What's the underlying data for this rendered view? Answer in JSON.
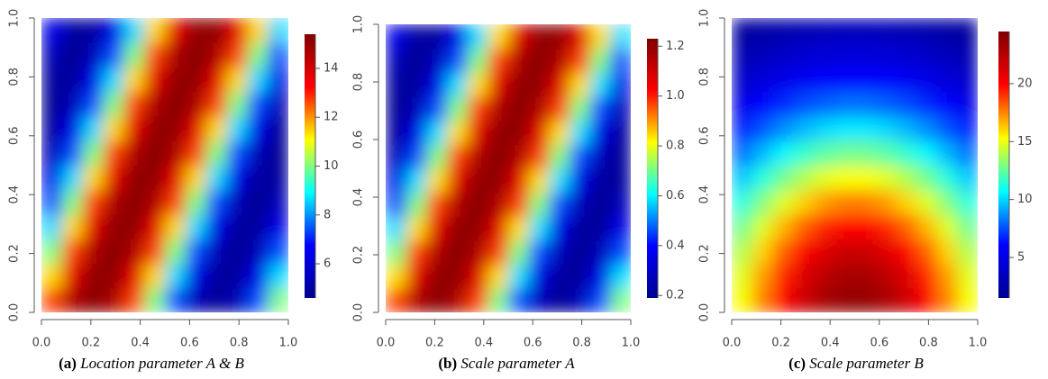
{
  "chart_data": [
    {
      "type": "heatmap",
      "label": "(a)",
      "title": "Location parameter A & B",
      "xlim": [
        0,
        1
      ],
      "ylim": [
        0,
        1
      ],
      "xticks": [
        {
          "value": 0,
          "label": "0.0"
        },
        {
          "value": 0.2,
          "label": "0.2"
        },
        {
          "value": 0.4,
          "label": "0.4"
        },
        {
          "value": 0.6,
          "label": "0.6"
        },
        {
          "value": 0.8,
          "label": "0.8"
        },
        {
          "value": 1,
          "label": "1.0"
        }
      ],
      "yticks": [
        {
          "value": 0,
          "label": "0.0"
        },
        {
          "value": 0.2,
          "label": "0.2"
        },
        {
          "value": 0.4,
          "label": "0.4"
        },
        {
          "value": 0.6,
          "label": "0.6"
        },
        {
          "value": 0.8,
          "label": "0.8"
        },
        {
          "value": 1,
          "label": "1.0"
        }
      ],
      "zlim": [
        4.6,
        15.4
      ],
      "zticks": [
        6,
        8,
        10,
        12,
        14
      ],
      "colormap": [
        "#00008f",
        "#0000ff",
        "#00ffff",
        "#ffff00",
        "#ff0000",
        "#800000"
      ],
      "z": [
        [
          12.7,
          14.6,
          15.3,
          14.6,
          12.7,
          10,
          7.4,
          5.4,
          4.7,
          5.4,
          7.4,
          10
        ],
        [
          11.4,
          13.7,
          15.1,
          15.1,
          13.7,
          11.4,
          8.6,
          6.3,
          4.9,
          4.9,
          6.3,
          8.6
        ],
        [
          10,
          12.7,
          14.6,
          15.3,
          14.6,
          12.7,
          10,
          7.4,
          5.4,
          4.7,
          5.4,
          7.4
        ],
        [
          8.6,
          11.4,
          13.7,
          15.1,
          15.1,
          13.7,
          11.4,
          8.6,
          6.3,
          4.9,
          4.9,
          6.3
        ],
        [
          7.4,
          10,
          12.7,
          14.6,
          15.3,
          14.6,
          12.7,
          10,
          7.4,
          5.4,
          4.7,
          5.4
        ],
        [
          6.3,
          8.6,
          11.4,
          13.7,
          15.1,
          15.1,
          13.7,
          11.4,
          8.6,
          6.3,
          4.9,
          4.9
        ],
        [
          5.4,
          7.4,
          10,
          12.7,
          14.6,
          15.3,
          14.6,
          12.7,
          10,
          7.4,
          5.4,
          4.7
        ],
        [
          4.9,
          6.3,
          8.6,
          11.4,
          13.7,
          15.1,
          15.1,
          13.7,
          11.4,
          8.6,
          6.3,
          4.9
        ],
        [
          4.7,
          5.4,
          7.4,
          10,
          12.7,
          14.6,
          15.3,
          14.6,
          12.7,
          10,
          7.4,
          5.4
        ],
        [
          4.9,
          4.9,
          6.3,
          8.6,
          11.4,
          13.7,
          15.1,
          15.1,
          13.7,
          11.4,
          8.6,
          6.3
        ],
        [
          5.4,
          4.7,
          5.4,
          7.4,
          10,
          12.7,
          14.6,
          15.3,
          14.6,
          12.7,
          10,
          7.4
        ],
        [
          6.3,
          4.9,
          4.9,
          6.3,
          8.6,
          11.4,
          13.7,
          15.1,
          15.1,
          13.7,
          11.4,
          8.6
        ]
      ]
    },
    {
      "type": "heatmap",
      "label": "(b)",
      "title": "Scale parameter A",
      "xlim": [
        0,
        1
      ],
      "ylim": [
        0,
        1
      ],
      "xticks": [
        {
          "value": 0,
          "label": "0.0"
        },
        {
          "value": 0.2,
          "label": "0.2"
        },
        {
          "value": 0.4,
          "label": "0.4"
        },
        {
          "value": 0.6,
          "label": "0.6"
        },
        {
          "value": 0.8,
          "label": "0.8"
        },
        {
          "value": 1,
          "label": "1.0"
        }
      ],
      "yticks": [
        {
          "value": 0,
          "label": "0.0"
        },
        {
          "value": 0.2,
          "label": "0.2"
        },
        {
          "value": 0.4,
          "label": "0.4"
        },
        {
          "value": 0.6,
          "label": "0.6"
        },
        {
          "value": 0.8,
          "label": "0.8"
        },
        {
          "value": 1,
          "label": "1.0"
        }
      ],
      "zlim": [
        0.19,
        1.23
      ],
      "zticks": [
        0.2,
        0.4,
        0.6,
        0.8,
        {
          "value": 1,
          "label": "1.0"
        },
        1.2
      ],
      "colormap": [
        "#00008f",
        "#0000ff",
        "#00ffff",
        "#ffff00",
        "#ff0000",
        "#800000"
      ],
      "z": [
        [
          0.97,
          1.15,
          1.22,
          1.15,
          0.97,
          0.71,
          0.46,
          0.27,
          0.2,
          0.27,
          0.46,
          0.71
        ],
        [
          0.84,
          1.07,
          1.2,
          1.2,
          1.07,
          0.84,
          0.58,
          0.35,
          0.22,
          0.22,
          0.35,
          0.58
        ],
        [
          0.71,
          0.97,
          1.15,
          1.22,
          1.15,
          0.97,
          0.71,
          0.46,
          0.27,
          0.2,
          0.27,
          0.46
        ],
        [
          0.58,
          0.84,
          1.07,
          1.2,
          1.2,
          1.07,
          0.84,
          0.58,
          0.35,
          0.22,
          0.22,
          0.35
        ],
        [
          0.46,
          0.71,
          0.97,
          1.15,
          1.22,
          1.15,
          0.97,
          0.71,
          0.46,
          0.27,
          0.2,
          0.27
        ],
        [
          0.35,
          0.58,
          0.84,
          1.07,
          1.2,
          1.2,
          1.07,
          0.84,
          0.58,
          0.35,
          0.22,
          0.22
        ],
        [
          0.27,
          0.46,
          0.71,
          0.97,
          1.15,
          1.22,
          1.15,
          0.97,
          0.71,
          0.46,
          0.27,
          0.2
        ],
        [
          0.22,
          0.35,
          0.58,
          0.84,
          1.07,
          1.2,
          1.2,
          1.07,
          0.84,
          0.58,
          0.35,
          0.22
        ],
        [
          0.2,
          0.27,
          0.46,
          0.71,
          0.97,
          1.15,
          1.22,
          1.15,
          0.97,
          0.71,
          0.46,
          0.27
        ],
        [
          0.22,
          0.22,
          0.35,
          0.58,
          0.84,
          1.07,
          1.2,
          1.2,
          1.07,
          0.84,
          0.58,
          0.35
        ],
        [
          0.27,
          0.2,
          0.27,
          0.46,
          0.71,
          0.97,
          1.15,
          1.22,
          1.15,
          0.97,
          0.71,
          0.46
        ],
        [
          0.35,
          0.22,
          0.22,
          0.35,
          0.58,
          0.84,
          1.07,
          1.2,
          1.2,
          1.07,
          0.84,
          0.58
        ]
      ]
    },
    {
      "type": "heatmap",
      "label": "(c)",
      "title": "Scale parameter B",
      "xlim": [
        0,
        1
      ],
      "ylim": [
        0,
        1
      ],
      "xticks": [
        {
          "value": 0,
          "label": "0.0"
        },
        {
          "value": 0.2,
          "label": "0.2"
        },
        {
          "value": 0.4,
          "label": "0.4"
        },
        {
          "value": 0.6,
          "label": "0.6"
        },
        {
          "value": 0.8,
          "label": "0.8"
        },
        {
          "value": 1,
          "label": "1.0"
        }
      ],
      "yticks": [
        {
          "value": 0,
          "label": "0.0"
        },
        {
          "value": 0.2,
          "label": "0.2"
        },
        {
          "value": 0.4,
          "label": "0.4"
        },
        {
          "value": 0.6,
          "label": "0.6"
        },
        {
          "value": 0.8,
          "label": "0.8"
        },
        {
          "value": 1,
          "label": "1.0"
        }
      ],
      "zlim": [
        1.5,
        24.5
      ],
      "zticks": [
        5,
        10,
        15,
        20
      ],
      "colormap": [
        "#00008f",
        "#0000ff",
        "#00ffff",
        "#ffff00",
        "#ff0000",
        "#800000"
      ],
      "z": [
        [
          15.2,
          17.6,
          19.9,
          21.8,
          23.1,
          23.8,
          23.8,
          23.1,
          21.8,
          19.9,
          17.6,
          15.2
        ],
        [
          14.8,
          17.1,
          19.3,
          21.1,
          22.4,
          23.1,
          23.1,
          22.4,
          21.1,
          19.3,
          17.1,
          14.8
        ],
        [
          13.9,
          16.1,
          18.2,
          19.9,
          21.1,
          21.8,
          21.8,
          21.1,
          19.9,
          18.2,
          16.1,
          13.9
        ],
        [
          12.7,
          14.7,
          16.6,
          18.2,
          19.3,
          19.9,
          19.9,
          19.3,
          18.2,
          16.6,
          14.7,
          12.7
        ],
        [
          11.3,
          13.1,
          14.7,
          16.1,
          17.1,
          17.6,
          17.6,
          17.1,
          16.1,
          14.7,
          13.1,
          11.3
        ],
        [
          9.7,
          11.3,
          12.7,
          13.9,
          14.8,
          15.2,
          15.2,
          14.8,
          13.9,
          12.7,
          11.3,
          9.7
        ],
        [
          8.1,
          9.4,
          10.6,
          11.6,
          12.3,
          12.7,
          12.7,
          12.3,
          11.6,
          10.6,
          9.4,
          8.1
        ],
        [
          6.6,
          7.6,
          8.6,
          9.4,
          10,
          10.3,
          10.3,
          10,
          9.4,
          8.6,
          7.6,
          6.6
        ],
        [
          5.2,
          6,
          6.8,
          7.4,
          7.8,
          8.1,
          8.1,
          7.8,
          7.4,
          6.8,
          6,
          5.2
        ],
        [
          3.9,
          4.6,
          5.2,
          5.6,
          6,
          6.2,
          6.2,
          6,
          5.6,
          5.2,
          4.6,
          3.9
        ],
        [
          2.9,
          3.4,
          3.8,
          4.2,
          4.4,
          4.6,
          4.6,
          4.4,
          4.2,
          3.8,
          3.4,
          2.9
        ],
        [
          2.1,
          2.4,
          2.7,
          3,
          3.2,
          3.3,
          3.3,
          3.2,
          3,
          2.7,
          2.4,
          2.1
        ]
      ]
    }
  ]
}
